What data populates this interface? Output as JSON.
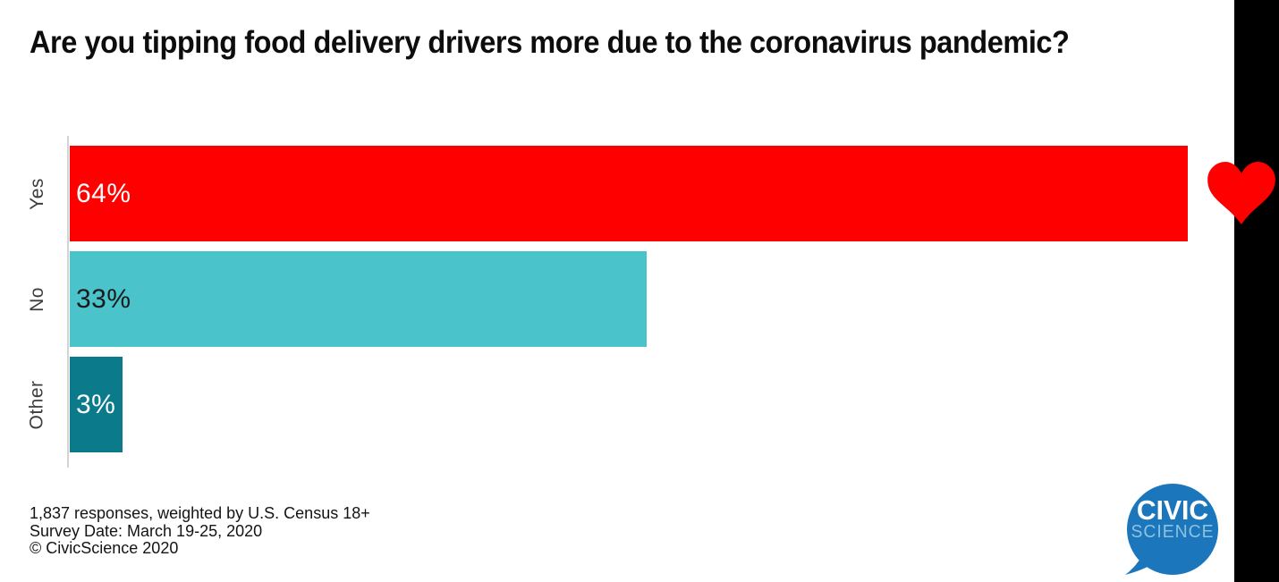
{
  "title": "Are you tipping food delivery drivers more due to the coronavirus pandemic?",
  "chart_data": {
    "type": "bar",
    "orientation": "horizontal",
    "title": "Are you tipping food delivery drivers more due to the coronavirus pandemic?",
    "categories": [
      "Yes",
      "No",
      "Other"
    ],
    "values": [
      64,
      33,
      3
    ],
    "value_labels": [
      "64%",
      "33%",
      "3%"
    ],
    "bar_colors": [
      "#fe0000",
      "#4ac3cb",
      "#0b7b8c"
    ],
    "value_label_colors": [
      "#ffffff",
      "#1a1a1a",
      "#ffffff"
    ],
    "xlim": [
      0,
      65
    ],
    "grid": "off",
    "axis_line_color": "#d4d4d4",
    "legend": "none"
  },
  "footer": {
    "responses": "1,837 responses, weighted by U.S. Census 18+",
    "survey_date": "Survey Date: March 19-25, 2020",
    "copyright": "© CivicScience 2020"
  },
  "logo": {
    "line1": "CIVIC",
    "line2": "SCIENCE",
    "bubble_color": "#1b76bc"
  },
  "decorations": {
    "heart_color": "#fe0000",
    "side_strip_color": "#000000"
  }
}
